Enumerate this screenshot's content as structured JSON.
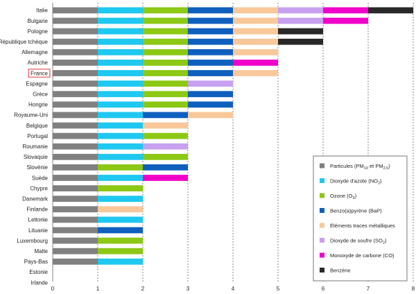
{
  "chart_data": {
    "type": "bar",
    "orientation": "horizontal",
    "stacked": true,
    "title": "",
    "xlabel": "",
    "ylabel": "",
    "xlim": [
      0,
      8
    ],
    "x_ticks": [
      "0",
      "1",
      "2",
      "3",
      "4",
      "5",
      "6",
      "7",
      "8"
    ],
    "grid": "vertical-dashed",
    "legend_position": "bottom-right",
    "highlighted_category": "France",
    "categories": [
      "Italie",
      "Bulgarie",
      "Pologne",
      "République tchèque",
      "Allemagne",
      "Autriche",
      "France",
      "Espagne",
      "Grèce",
      "Hongrie",
      "Royaume-Uni",
      "Belgique",
      "Portugal",
      "Roumanie",
      "Slovaquie",
      "Slovénie",
      "Suède",
      "Chypre",
      "Danemark",
      "Finlande",
      "Lettonie",
      "Lituanie",
      "Luxembourg",
      "Malte",
      "Pays-Bas",
      "Estonie",
      "Irlande"
    ],
    "series": [
      {
        "name": "Particules (PM10 et PM2,5)",
        "label_base": "Particules (PM",
        "sub1": "10",
        "label_mid": " et PM",
        "sub2": "2,5",
        "label_end": ")",
        "color": "#808080",
        "values": [
          1,
          1,
          1,
          1,
          1,
          1,
          1,
          1,
          1,
          1,
          1,
          1,
          1,
          1,
          1,
          1,
          1,
          1,
          1,
          1,
          1,
          1,
          1,
          1,
          1,
          0,
          0
        ]
      },
      {
        "name": "Dioxyde d'azote (NO2)",
        "label_base": "Dioxyde d'azote (NO",
        "sub1": "2",
        "label_mid": ")",
        "color": "#1ec8f0",
        "values": [
          1,
          1,
          1,
          1,
          1,
          1,
          1,
          1,
          1,
          1,
          1,
          1,
          1,
          1,
          1,
          0,
          1,
          0,
          1,
          0,
          1,
          0,
          0,
          0,
          1,
          0,
          0
        ]
      },
      {
        "name": "Ozone (O3)",
        "label_base": "Ozone (O",
        "sub1": "3",
        "label_mid": ")",
        "color": "#8cc814",
        "values": [
          1,
          1,
          1,
          1,
          1,
          1,
          1,
          1,
          1,
          1,
          0,
          0,
          1,
          0,
          1,
          1,
          0,
          1,
          0,
          0,
          0,
          0,
          1,
          1,
          0,
          0,
          0
        ]
      },
      {
        "name": "Benzo(a)pyrène (BaP)",
        "label_base": "Benzo(a)pyrène (BaP)",
        "color": "#0f5fbe",
        "values": [
          1,
          1,
          1,
          1,
          1,
          1,
          1,
          0,
          1,
          1,
          1,
          0,
          0,
          0,
          0,
          1,
          0,
          0,
          0,
          0,
          0,
          1,
          0,
          0,
          0,
          0,
          0
        ]
      },
      {
        "name": "Éléments traces métalliques",
        "label_base": "Éléments traces métalliques",
        "color": "#f8c89a",
        "values": [
          1,
          1,
          1,
          1,
          1,
          0,
          1,
          0,
          0,
          0,
          1,
          1,
          0,
          0,
          0,
          0,
          0,
          0,
          0,
          1,
          0,
          0,
          0,
          0,
          0,
          0,
          0
        ]
      },
      {
        "name": "Dioxyde de soufre (SO2)",
        "label_base": "Dioxyde de soufre (SO",
        "sub1": "2",
        "label_mid": ")",
        "color": "#c8a0f0",
        "values": [
          1,
          1,
          0,
          0,
          0,
          0,
          0,
          1,
          0,
          0,
          0,
          0,
          0,
          1,
          0,
          0,
          0,
          0,
          0,
          0,
          0,
          0,
          0,
          0,
          0,
          0,
          0
        ]
      },
      {
        "name": "Monoxyde de carbone (CO)",
        "label_base": "Monoxyde de carbone (CO)",
        "color": "#f000c8",
        "values": [
          1,
          1,
          0,
          0,
          0,
          1,
          0,
          0,
          0,
          0,
          0,
          0,
          0,
          0,
          0,
          0,
          1,
          0,
          0,
          0,
          0,
          0,
          0,
          0,
          0,
          0,
          0
        ]
      },
      {
        "name": "Benzène",
        "label_base": "Benzène",
        "color": "#282828",
        "values": [
          1,
          0,
          1,
          1,
          0,
          0,
          0,
          0,
          0,
          0,
          0,
          0,
          0,
          0,
          0,
          0,
          0,
          0,
          0,
          0,
          0,
          0,
          0,
          0,
          0,
          0,
          0
        ]
      }
    ]
  }
}
